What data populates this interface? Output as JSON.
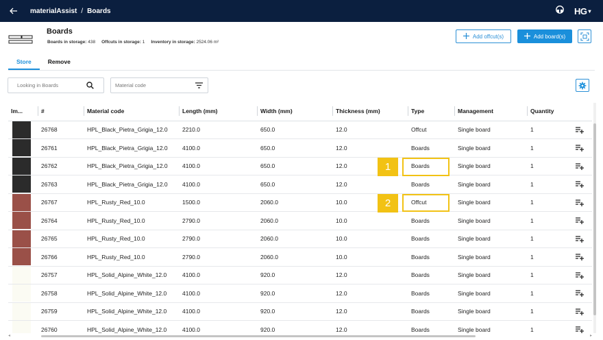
{
  "topbar": {
    "app_name": "materialAssist",
    "separator": "/",
    "page": "Boards",
    "logo": "HG",
    "caret": "▾"
  },
  "header": {
    "title": "Boards",
    "stats": [
      {
        "label": "Boards in storage:",
        "value": "438"
      },
      {
        "label": "Offcuts in storage:",
        "value": "1"
      },
      {
        "label": "Inventory in storage:",
        "value": "2524.06 m²"
      }
    ],
    "add_offcut_label": "Add offcut(s)",
    "add_board_label": "Add board(s)"
  },
  "tabs": [
    {
      "label": "Store",
      "active": true
    },
    {
      "label": "Remove",
      "active": false
    }
  ],
  "search": {
    "placeholder": "Looking in Boards"
  },
  "filter": {
    "placeholder": "Material code"
  },
  "table": {
    "columns": [
      "Im...",
      "#",
      "Material code",
      "Length (mm)",
      "Width (mm)",
      "Thickness (mm)",
      "Type",
      "Management",
      "Quantity"
    ],
    "rows": [
      {
        "color": "#2b2b2b",
        "id": "26768",
        "material": "HPL_Black_Pietra_Grigia_12.0",
        "length": "2210.0",
        "width": "650.0",
        "thickness": "12.0",
        "type": "Offcut",
        "management": "Single board",
        "quantity": "1"
      },
      {
        "color": "#2b2b2b",
        "id": "26761",
        "material": "HPL_Black_Pietra_Grigia_12.0",
        "length": "4100.0",
        "width": "650.0",
        "thickness": "12.0",
        "type": "Boards",
        "management": "Single board",
        "quantity": "1"
      },
      {
        "color": "#2b2b2b",
        "id": "26762",
        "material": "HPL_Black_Pietra_Grigia_12.0",
        "length": "4100.0",
        "width": "650.0",
        "thickness": "12.0",
        "type": "Boards",
        "management": "Single board",
        "quantity": "1"
      },
      {
        "color": "#2b2b2b",
        "id": "26763",
        "material": "HPL_Black_Pietra_Grigia_12.0",
        "length": "4100.0",
        "width": "650.0",
        "thickness": "12.0",
        "type": "Boards",
        "management": "Single board",
        "quantity": "1"
      },
      {
        "color": "#9a5048",
        "id": "26767",
        "material": "HPL_Rusty_Red_10.0",
        "length": "1500.0",
        "width": "2060.0",
        "thickness": "10.0",
        "type": "Offcut",
        "management": "Single board",
        "quantity": "1"
      },
      {
        "color": "#9a5048",
        "id": "26764",
        "material": "HPL_Rusty_Red_10.0",
        "length": "2790.0",
        "width": "2060.0",
        "thickness": "10.0",
        "type": "Boards",
        "management": "Single board",
        "quantity": "1"
      },
      {
        "color": "#9a5048",
        "id": "26765",
        "material": "HPL_Rusty_Red_10.0",
        "length": "2790.0",
        "width": "2060.0",
        "thickness": "10.0",
        "type": "Boards",
        "management": "Single board",
        "quantity": "1"
      },
      {
        "color": "#9a5048",
        "id": "26766",
        "material": "HPL_Rusty_Red_10.0",
        "length": "2790.0",
        "width": "2060.0",
        "thickness": "10.0",
        "type": "Boards",
        "management": "Single board",
        "quantity": "1"
      },
      {
        "color": "#fbfbf3",
        "id": "26757",
        "material": "HPL_Solid_Alpine_White_12.0",
        "length": "4100.0",
        "width": "920.0",
        "thickness": "12.0",
        "type": "Boards",
        "management": "Single board",
        "quantity": "1"
      },
      {
        "color": "#fbfbf3",
        "id": "26758",
        "material": "HPL_Solid_Alpine_White_12.0",
        "length": "4100.0",
        "width": "920.0",
        "thickness": "12.0",
        "type": "Boards",
        "management": "Single board",
        "quantity": "1"
      },
      {
        "color": "#fbfbf3",
        "id": "26759",
        "material": "HPL_Solid_Alpine_White_12.0",
        "length": "4100.0",
        "width": "920.0",
        "thickness": "12.0",
        "type": "Boards",
        "management": "Single board",
        "quantity": "1"
      },
      {
        "color": "#fbfbf3",
        "id": "26760",
        "material": "HPL_Solid_Alpine_White_12.0",
        "length": "4100.0",
        "width": "920.0",
        "thickness": "12.0",
        "type": "Boards",
        "management": "Single board",
        "quantity": "1"
      }
    ]
  },
  "callouts": [
    "1",
    "2"
  ],
  "colors": {
    "navy": "#0b1f3f",
    "accent": "#1a8fdb",
    "callout": "#f2c214"
  }
}
